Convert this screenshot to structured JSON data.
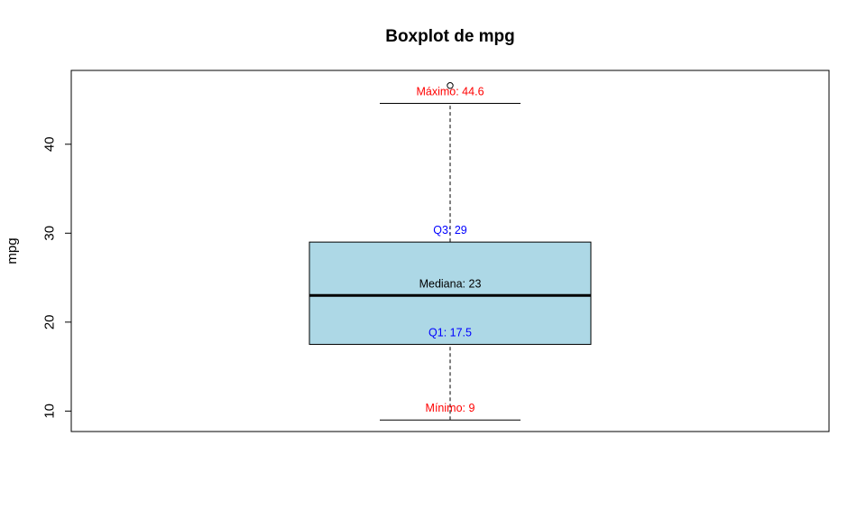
{
  "chart_data": {
    "type": "boxplot",
    "title": "Boxplot de mpg",
    "xlabel": "",
    "ylabel": "mpg",
    "ylim": [
      7.7,
      48.3
    ],
    "yticks": [
      10,
      20,
      30,
      40
    ],
    "stats": {
      "lower_whisker": 9,
      "q1": 17.5,
      "median": 23,
      "q3": 29,
      "upper_whisker": 44.6
    },
    "outliers": [
      46.6
    ],
    "box_color": "#add8e6",
    "annotations": [
      {
        "name": "max",
        "text": "Máximo:  44.6",
        "value": 44.6,
        "color": "#ff0000"
      },
      {
        "name": "q3",
        "text": "Q3:  29",
        "value": 29,
        "color": "#0000ff"
      },
      {
        "name": "median",
        "text": "Mediana:  23",
        "value": 23,
        "color": "#000000"
      },
      {
        "name": "q1",
        "text": "Q1:  17.5",
        "value": 17.5,
        "color": "#0000ff"
      },
      {
        "name": "min",
        "text": "Mínimo:  9",
        "value": 9,
        "color": "#ff0000"
      }
    ],
    "grid": false
  }
}
